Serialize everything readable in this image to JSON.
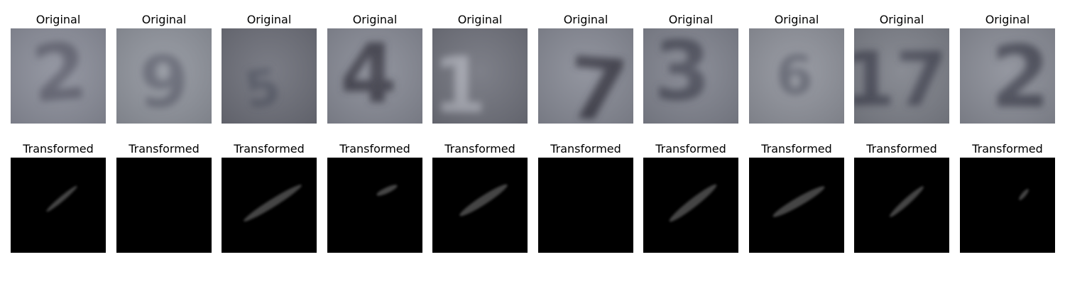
{
  "rows": [
    {
      "title": "Original",
      "images": [
        {
          "digit": "2",
          "bg": "#8a8d99",
          "ink": "#5e606e"
        },
        {
          "digit": "9",
          "bg": "#8f939c",
          "ink": "#656874"
        },
        {
          "digit": "5",
          "bg": "#6c6e78",
          "ink": "#505260"
        },
        {
          "digit": "4",
          "bg": "#868994",
          "ink": "#3c3e4a"
        },
        {
          "digit": "1",
          "bg": "#6f717b",
          "ink": "#a2a4ae"
        },
        {
          "digit": "7",
          "bg": "#868994",
          "ink": "#3c3e4a"
        },
        {
          "digit": "3",
          "bg": "#7f828d",
          "ink": "#4a4c58"
        },
        {
          "digit": "6",
          "bg": "#8e919a",
          "ink": "#60636f"
        },
        {
          "digit": "17",
          "bg": "#7c7f88",
          "ink": "#4a4c58"
        },
        {
          "digit": "2",
          "bg": "#888b95",
          "ink": "#4a4c58"
        }
      ]
    },
    {
      "title": "Transformed",
      "images": [
        {
          "stroke": "#454545"
        },
        {
          "stroke": "none"
        },
        {
          "stroke": "#454545"
        },
        {
          "stroke": "#454545"
        },
        {
          "stroke": "#454545"
        },
        {
          "stroke": "none"
        },
        {
          "stroke": "#454545"
        },
        {
          "stroke": "#454545"
        },
        {
          "stroke": "#454545"
        },
        {
          "stroke": "#454545"
        }
      ]
    }
  ]
}
